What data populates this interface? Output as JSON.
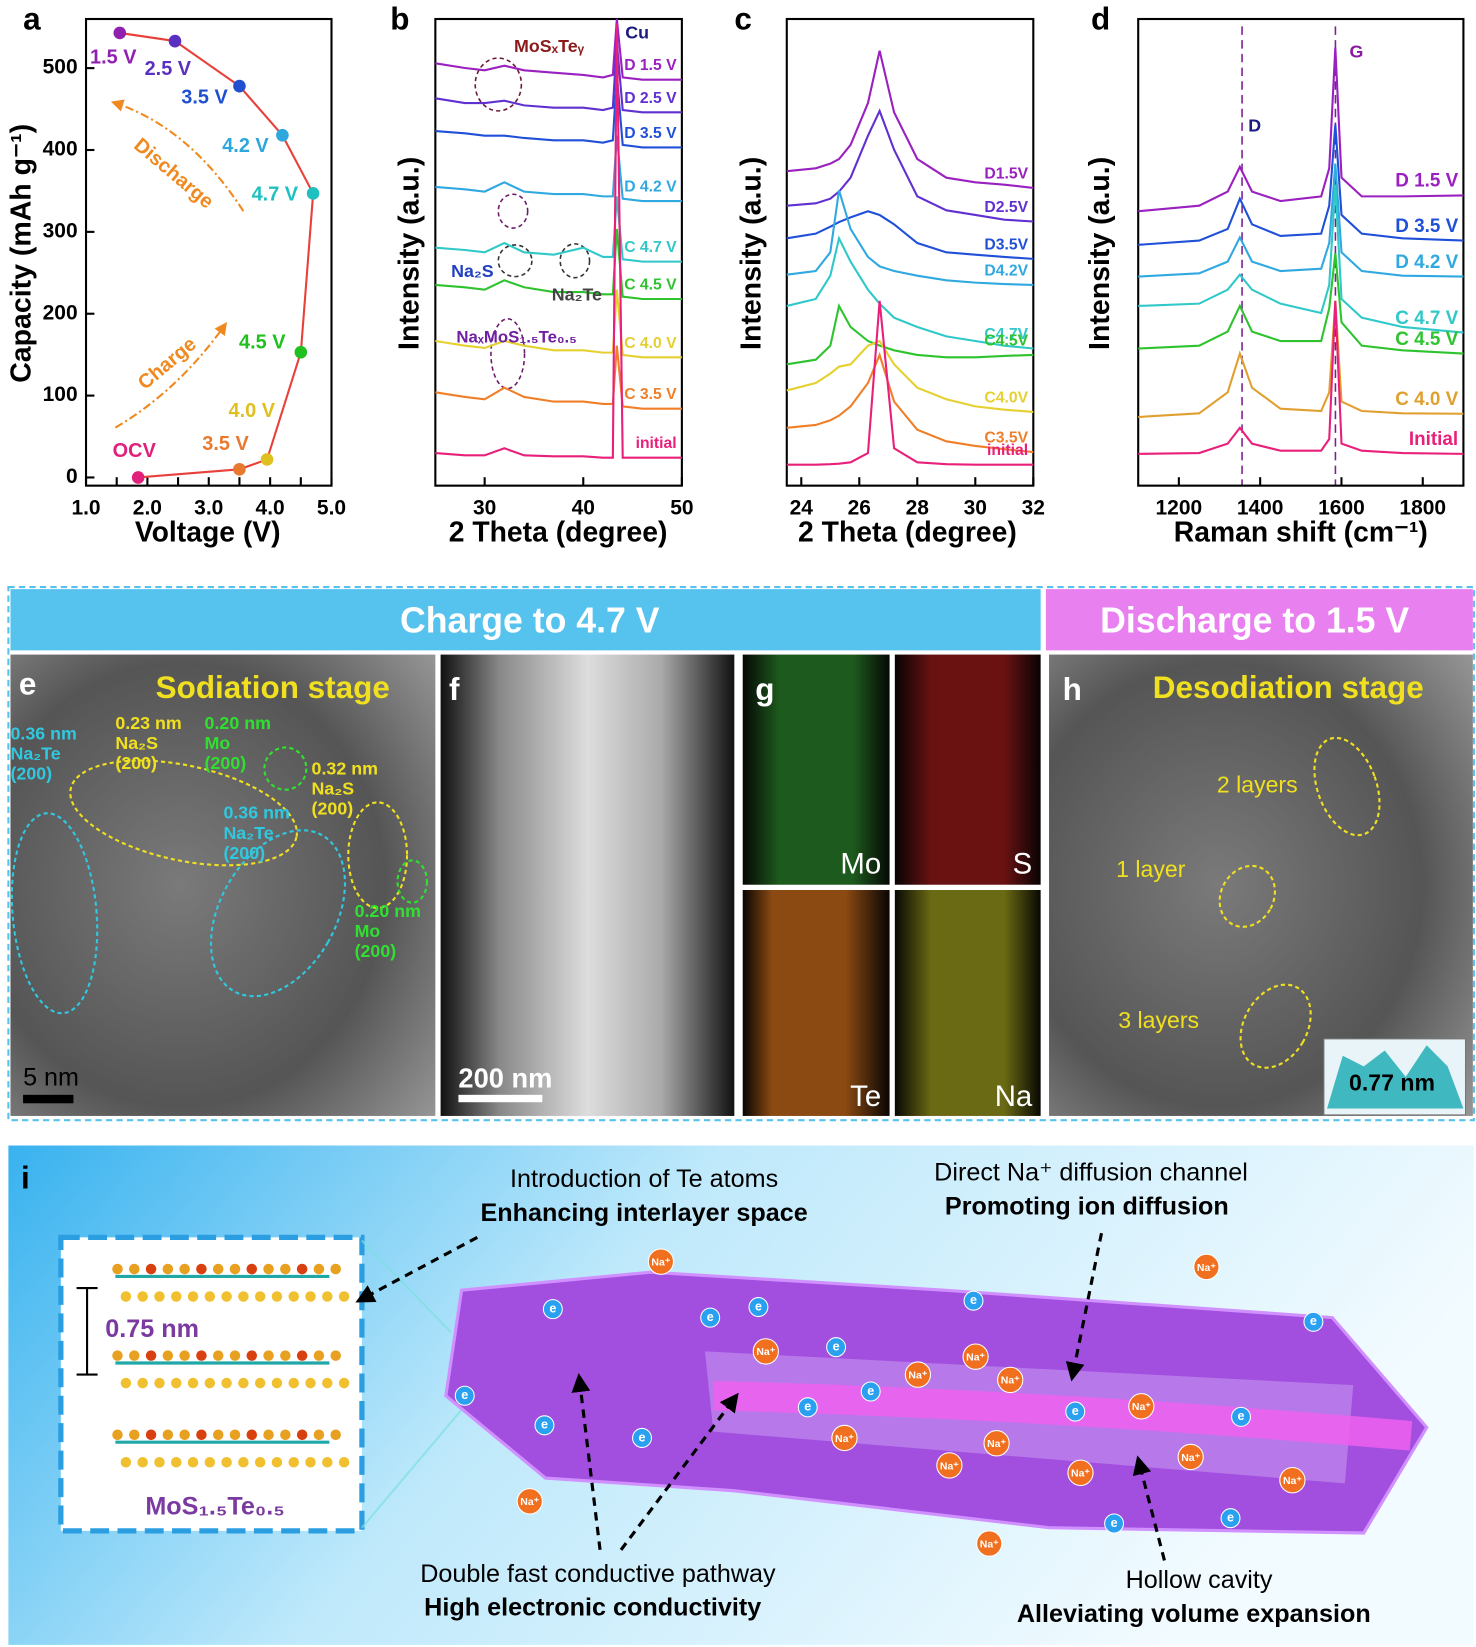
{
  "chart_data": [
    {
      "type": "line",
      "x": [
        1.85,
        3.5,
        3.95,
        4.5,
        4.7,
        4.2,
        3.5,
        2.45,
        1.55
      ],
      "values": [
        0,
        10,
        22,
        153,
        347,
        418,
        478,
        533,
        543
      ],
      "point_labels": [
        "OCV",
        "3.5 V",
        "4.0 V",
        "4.5 V",
        "4.7 V",
        "4.2 V",
        "3.5 V",
        "2.5 V",
        "1.5 V"
      ],
      "point_colors": [
        "#e0207a",
        "#e87a30",
        "#e0c020",
        "#20c020",
        "#20c0c0",
        "#2ea8dc",
        "#2050d0",
        "#5a30c0",
        "#9020b0"
      ],
      "color": "#e8403a",
      "xlabel": "Voltage (V)",
      "ylabel": "Capacity (mAh g⁻¹)",
      "xlim": [
        1.0,
        5.0
      ],
      "ylim": [
        -10,
        560
      ],
      "xticks": [
        {
          "value": 1,
          "label": "1.0"
        },
        {
          "value": 1.5,
          "label": ""
        },
        {
          "value": 2,
          "label": "2.0"
        },
        {
          "value": 2.5,
          "label": ""
        },
        {
          "value": 3,
          "label": "3.0"
        },
        {
          "value": 3.5,
          "label": ""
        },
        {
          "value": 4,
          "label": "4.0"
        },
        {
          "value": 4.5,
          "label": ""
        },
        {
          "value": 5,
          "label": "5.0"
        }
      ],
      "yticks": [
        0,
        100,
        200,
        300,
        400,
        500
      ],
      "annotations": [
        "Discharge",
        "Charge"
      ]
    },
    {
      "type": "line",
      "x": [
        25,
        28,
        30,
        32,
        34,
        37,
        40,
        42,
        43,
        43.4,
        44,
        46,
        50
      ],
      "xlabel": "2 Theta (degree)",
      "ylabel": "Intensity (a.u.)",
      "xlim": [
        25,
        50
      ],
      "ylim": [
        0,
        100
      ],
      "xticks": [
        30,
        40,
        50
      ],
      "annotations": [
        "Cu",
        "MoSₓTeᵧ",
        "Na₂S",
        "Na₂Te",
        "NaₓMoS₁.₅Te₀.₅"
      ],
      "series": [
        {
          "name": "D 1.5 V",
          "color": "#9a20c0",
          "values": [
            90.5,
            89.5,
            89,
            90,
            89,
            88.5,
            88,
            87.5,
            88,
            100,
            87.5,
            87,
            87
          ]
        },
        {
          "name": "D 2.5 V",
          "color": "#6030d0",
          "values": [
            83,
            82,
            82,
            82.5,
            81.5,
            81,
            81,
            80.5,
            81,
            95,
            80.5,
            80,
            80
          ]
        },
        {
          "name": "D 3.5 V",
          "color": "#2050d8",
          "values": [
            76,
            75.5,
            75,
            75,
            74.5,
            74,
            74,
            73.5,
            74,
            88,
            73,
            72.5,
            72.5
          ]
        },
        {
          "name": "D 4.2 V",
          "color": "#30a8e0",
          "values": [
            64,
            63.5,
            63,
            65,
            63,
            62.5,
            62.5,
            62,
            62,
            75,
            61.5,
            61,
            61
          ]
        },
        {
          "name": "C 4.7 V",
          "color": "#30c8c8",
          "values": [
            51,
            50.5,
            50,
            52,
            50,
            49.5,
            51,
            49,
            49,
            62,
            48.5,
            48,
            48
          ]
        },
        {
          "name": "C 4.5 V",
          "color": "#2fc32f",
          "values": [
            43,
            42.5,
            42,
            44,
            42.5,
            41.5,
            41.5,
            41,
            41,
            55,
            40.5,
            40,
            40
          ]
        },
        {
          "name": "C 4.0 V",
          "color": "#e5d030",
          "values": [
            31,
            30,
            29.5,
            31,
            30,
            29,
            29,
            28.5,
            28.5,
            42,
            28,
            27.5,
            27.5
          ]
        },
        {
          "name": "C 3.5 V",
          "color": "#f07f2a",
          "values": [
            20,
            19,
            18.5,
            21,
            19,
            18,
            18,
            17.5,
            17.5,
            30,
            17,
            16.5,
            16.5
          ]
        },
        {
          "name": "initial",
          "color": "#e8207a",
          "values": [
            7,
            6.5,
            6.5,
            8,
            6.5,
            6.3,
            6.3,
            6,
            6,
            99,
            6,
            6,
            6
          ]
        }
      ]
    },
    {
      "type": "line",
      "x": [
        23.5,
        24.5,
        25,
        25.3,
        25.7,
        26.3,
        26.7,
        27.2,
        28,
        29,
        30,
        31,
        32
      ],
      "xlabel": "2 Theta (degree)",
      "ylabel": "Intensity (a.u.)",
      "xlim": [
        23.5,
        32
      ],
      "ylim": [
        0,
        100
      ],
      "xticks": [
        24,
        26,
        28,
        30,
        32
      ],
      "series": [
        {
          "name": "D1.5V",
          "color": "#9a20c0",
          "values": [
            67.4,
            68,
            69,
            70,
            73,
            82,
            93.2,
            80,
            70,
            66,
            65,
            64.5,
            63.8
          ]
        },
        {
          "name": "D2.5V",
          "color": "#6030d0",
          "values": [
            60,
            60.5,
            61.5,
            63,
            66,
            75,
            80.3,
            72,
            62,
            59,
            58,
            57,
            56.6
          ]
        },
        {
          "name": "D3.5V",
          "color": "#2050d8",
          "values": [
            53,
            54,
            55.5,
            56.5,
            57.5,
            58.8,
            58,
            56,
            52,
            50,
            49.5,
            49,
            48.6
          ]
        },
        {
          "name": "D4.2V",
          "color": "#30a8e0",
          "values": [
            45.2,
            46,
            50,
            63.3,
            55,
            49,
            47,
            46,
            45,
            44,
            43.5,
            43.2,
            43
          ]
        },
        {
          "name": "C4.7V",
          "color": "#30c8c8",
          "values": [
            38.5,
            40,
            45,
            53,
            48,
            42,
            39,
            36,
            34,
            32,
            31,
            30,
            29.4
          ]
        },
        {
          "name": "C4.5V",
          "color": "#2fc32f",
          "values": [
            26,
            27,
            30,
            38.5,
            34,
            31,
            30,
            29,
            28,
            27.5,
            27.5,
            27.8,
            28
          ]
        },
        {
          "name": "C4.0V",
          "color": "#e5d030",
          "values": [
            20.4,
            22,
            24,
            25.5,
            26,
            30,
            31,
            26,
            21,
            18.5,
            17,
            16.3,
            15.8
          ]
        },
        {
          "name": "C3.5V",
          "color": "#f07f2a",
          "values": [
            12.4,
            13,
            14,
            15,
            17,
            22,
            28,
            18,
            12,
            9.5,
            8.5,
            7.8,
            7.2
          ]
        },
        {
          "name": "initial",
          "color": "#e8207a",
          "values": [
            4.5,
            4.5,
            4.6,
            4.7,
            5,
            7,
            39.6,
            8,
            5,
            4.6,
            4.5,
            4.5,
            4.5
          ]
        }
      ]
    },
    {
      "type": "line",
      "x": [
        1100,
        1250,
        1320,
        1350,
        1380,
        1450,
        1550,
        1570,
        1585,
        1600,
        1650,
        1750,
        1900
      ],
      "xlabel": "Raman shift (cm⁻¹)",
      "ylabel": "Intensity (a.u.)",
      "xlim": [
        1100,
        1900
      ],
      "ylim": [
        0,
        100
      ],
      "xticks": [
        1200,
        1400,
        1600,
        1800
      ],
      "annotations": [
        "D",
        "G"
      ],
      "series": [
        {
          "name": "D 1.5 V",
          "color": "#9a20c0",
          "values": [
            58.8,
            60,
            63,
            68.3,
            63,
            61,
            62,
            68,
            93.9,
            66,
            62,
            62,
            62.2
          ]
        },
        {
          "name": "D 3.5 V",
          "color": "#2050d8",
          "values": [
            51.6,
            52.5,
            55,
            61.5,
            56,
            53.5,
            54,
            60,
            77.4,
            58,
            54,
            53,
            52.5
          ]
        },
        {
          "name": "D 4.2 V",
          "color": "#30a8e0",
          "values": [
            44.8,
            45.5,
            48,
            53.2,
            48,
            46,
            46.5,
            52,
            69,
            50,
            46,
            45,
            44.8
          ]
        },
        {
          "name": "C 4.7 V",
          "color": "#30c8c8",
          "values": [
            38.5,
            39,
            42,
            45.2,
            42,
            39,
            37,
            43,
            64.5,
            40,
            36,
            34,
            32.8
          ]
        },
        {
          "name": "C 4.5 V",
          "color": "#2fc32f",
          "values": [
            29.4,
            30,
            33,
            38.5,
            33,
            31,
            31,
            38,
            49.8,
            35,
            30,
            29,
            28.3
          ]
        },
        {
          "name": "C 4.0 V",
          "color": "#e0a030",
          "values": [
            14.7,
            15.5,
            20,
            28.3,
            21,
            16.5,
            16,
            20,
            39.6,
            18,
            16,
            15.5,
            15.4
          ]
        },
        {
          "name": "Initial",
          "color": "#e8207a",
          "values": [
            6.8,
            7,
            9,
            12.4,
            9,
            7.5,
            7.5,
            10,
            39.6,
            9,
            7.5,
            7,
            6.8
          ]
        }
      ]
    }
  ],
  "letters": [
    "a",
    "b",
    "c",
    "d",
    "e",
    "f",
    "g",
    "h",
    "i"
  ],
  "banners": [
    "Charge to 4.7 V",
    "Discharge to 1.5 V"
  ],
  "e": {
    "title": "Sodiation stage",
    "scale": "5 nm",
    "lattice": [
      {
        "lines": [
          "0.36 nm",
          "Na₂Te",
          "(200)"
        ],
        "color": "#30c8e0"
      },
      {
        "lines": [
          "0.23 nm",
          "Na₂S",
          "(200)"
        ],
        "color": "#f0e020"
      },
      {
        "lines": [
          "0.20 nm",
          "Mo",
          "(200)"
        ],
        "color": "#30e030"
      },
      {
        "lines": [
          "0.32 nm",
          "Na₂S",
          "(200)"
        ],
        "color": "#f0e020"
      },
      {
        "lines": [
          "0.36 nm",
          "Na₂Te",
          "(200)"
        ],
        "color": "#30c8e0"
      },
      {
        "lines": [
          "0.20 nm",
          "Mo",
          "(200)"
        ],
        "color": "#30e030"
      }
    ]
  },
  "f": {
    "scale": "200 nm"
  },
  "g": {
    "elements": [
      "Mo",
      "S",
      "Te",
      "Na"
    ]
  },
  "h": {
    "title": "Desodiation stage",
    "layers": [
      "2 layers",
      "1 layer",
      "3 layers"
    ],
    "inset": "0.77 nm"
  },
  "i": {
    "te_intro": "Introduction of Te atoms",
    "te_effect": "Enhancing interlayer space",
    "channel": "Direct Na⁺ diffusion channel",
    "channel_effect": "Promoting ion diffusion",
    "spacing": "0.75 nm",
    "formula": "MoS₁.₅Te₀.₅",
    "pathway": "Double fast conductive pathway",
    "pathway_effect": "High electronic conductivity",
    "cavity": "Hollow cavity",
    "cavity_effect": "Alleviating volume expansion",
    "ion": "Na⁺",
    "electron": "e"
  }
}
